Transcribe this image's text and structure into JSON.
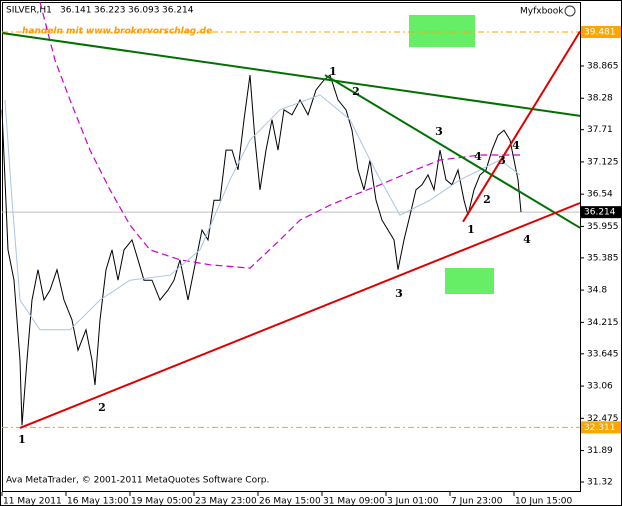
{
  "chart_data": {
    "type": "line",
    "title": "SILVER,H1",
    "ohlc": [
      36.141,
      36.223,
      36.093,
      36.214
    ],
    "watermark": "Myfxbook",
    "annotation": "handeln mit www.brokervorschlag.de",
    "footer": "Ava MetaTrader, © 2001-2011 MetaQuotes Software Corp.",
    "xlim": [
      0,
      578
    ],
    "xticks": [
      {
        "value": 0,
        "label": "11 May 2011"
      },
      {
        "value": 64,
        "label": "16 May 13:00"
      },
      {
        "value": 128,
        "label": "19 May 05:00"
      },
      {
        "value": 192,
        "label": "23 May 23:00"
      },
      {
        "value": 256,
        "label": "26 May 15:00"
      },
      {
        "value": 320,
        "label": "31 May 09:00"
      },
      {
        "value": 384,
        "label": "3 Jun 01:00"
      },
      {
        "value": 448,
        "label": "7 Jun 23:00"
      },
      {
        "value": 512,
        "label": "10 Jun 15:00"
      }
    ],
    "ylim": [
      31.139,
      40.025
    ],
    "yticks": [
      38.865,
      38.28,
      37.71,
      37.125,
      36.54,
      35.955,
      35.385,
      34.8,
      34.215,
      33.645,
      33.06,
      32.475,
      31.89,
      31.32
    ],
    "levels": [
      {
        "value": 39.481,
        "color": "#ffa500"
      },
      {
        "value": 36.214,
        "color": "#000000"
      },
      {
        "value": 32.311,
        "color": "#ffa500"
      }
    ],
    "series": [
      {
        "color": "#000000",
        "dash": false,
        "x": [
          0,
          6,
          12,
          18,
          20,
          25,
          30,
          36,
          42,
          48,
          55,
          62,
          70,
          76,
          84,
          90,
          93,
          98,
          104,
          110,
          116,
          122,
          130,
          136,
          142,
          150,
          158,
          166,
          172,
          178,
          186,
          194,
          200,
          206,
          212,
          218,
          224,
          230,
          236,
          242,
          248,
          253,
          258,
          264,
          270,
          276,
          282,
          290,
          298,
          306,
          314,
          322,
          328,
          336,
          344,
          350,
          356,
          362,
          368,
          374,
          380,
          386,
          392,
          396,
          402,
          408,
          414,
          420,
          426,
          432,
          438,
          444,
          450,
          456,
          462,
          466,
          472,
          478,
          484,
          490,
          496,
          502,
          508,
          512,
          516,
          519
        ],
        "values": [
          38.07,
          35.53,
          34.98,
          33.53,
          32.35,
          33.53,
          34.62,
          35.17,
          34.62,
          34.8,
          35.17,
          34.62,
          34.26,
          33.71,
          34.08,
          33.53,
          33.08,
          34.26,
          35.17,
          35.53,
          34.98,
          35.53,
          35.71,
          35.35,
          34.98,
          34.98,
          34.62,
          34.8,
          34.98,
          35.35,
          34.62,
          35.35,
          35.89,
          35.71,
          36.43,
          36.43,
          37.34,
          37.34,
          36.98,
          37.89,
          38.7,
          37.52,
          36.62,
          37.34,
          37.89,
          37.34,
          38.07,
          37.98,
          38.25,
          37.98,
          38.43,
          38.61,
          38.7,
          38.25,
          38.07,
          37.7,
          36.98,
          36.62,
          37.16,
          36.43,
          36.07,
          35.89,
          35.71,
          35.17,
          35.71,
          36.16,
          36.62,
          36.71,
          36.89,
          36.62,
          37.34,
          36.8,
          36.71,
          36.98,
          36.43,
          36.16,
          36.62,
          36.89,
          36.98,
          37.34,
          37.61,
          37.7,
          37.52,
          37.16,
          36.8,
          36.214
        ]
      },
      {
        "color": "#cc00cc",
        "dash": true,
        "x": [
          38,
          53,
          68,
          88,
          108,
          128,
          148,
          178,
          208,
          248,
          278,
          298,
          328,
          353,
          378,
          408,
          438,
          478,
          518
        ],
        "values": [
          40.025,
          38.97,
          38.25,
          37.34,
          36.62,
          35.98,
          35.53,
          35.35,
          35.26,
          35.2,
          35.71,
          36.07,
          36.34,
          36.53,
          36.71,
          36.94,
          37.16,
          37.25,
          37.25
        ]
      },
      {
        "color": "#a9c4e8",
        "dash": false,
        "x": [
          3,
          10,
          18,
          38,
          68,
          98,
          128,
          168,
          198,
          228,
          248,
          278,
          318,
          348,
          373,
          398,
          428,
          458,
          498,
          518
        ],
        "values": [
          38.25,
          36.43,
          34.62,
          34.08,
          34.08,
          34.62,
          34.98,
          35.07,
          35.53,
          36.8,
          37.52,
          38.07,
          38.34,
          37.89,
          36.98,
          36.16,
          36.43,
          36.8,
          37.16,
          36.89
        ]
      }
    ],
    "trendlines": [
      {
        "color": "#007000",
        "x": [
          0,
          578
        ],
        "y": [
          39.463,
          37.96
        ]
      },
      {
        "color": "#007000",
        "x": [
          323,
          578
        ],
        "y": [
          38.7,
          35.93
        ]
      },
      {
        "color": "#e00000",
        "x": [
          18,
          578
        ],
        "y": [
          32.3,
          36.38
        ]
      },
      {
        "color": "#e00000",
        "x": [
          461,
          578
        ],
        "y": [
          36.04,
          39.49
        ]
      }
    ],
    "wave_labels": [
      "1",
      "2",
      "3",
      "4",
      "4",
      "3",
      "2",
      "1",
      "4",
      "3",
      "2",
      "1"
    ]
  }
}
